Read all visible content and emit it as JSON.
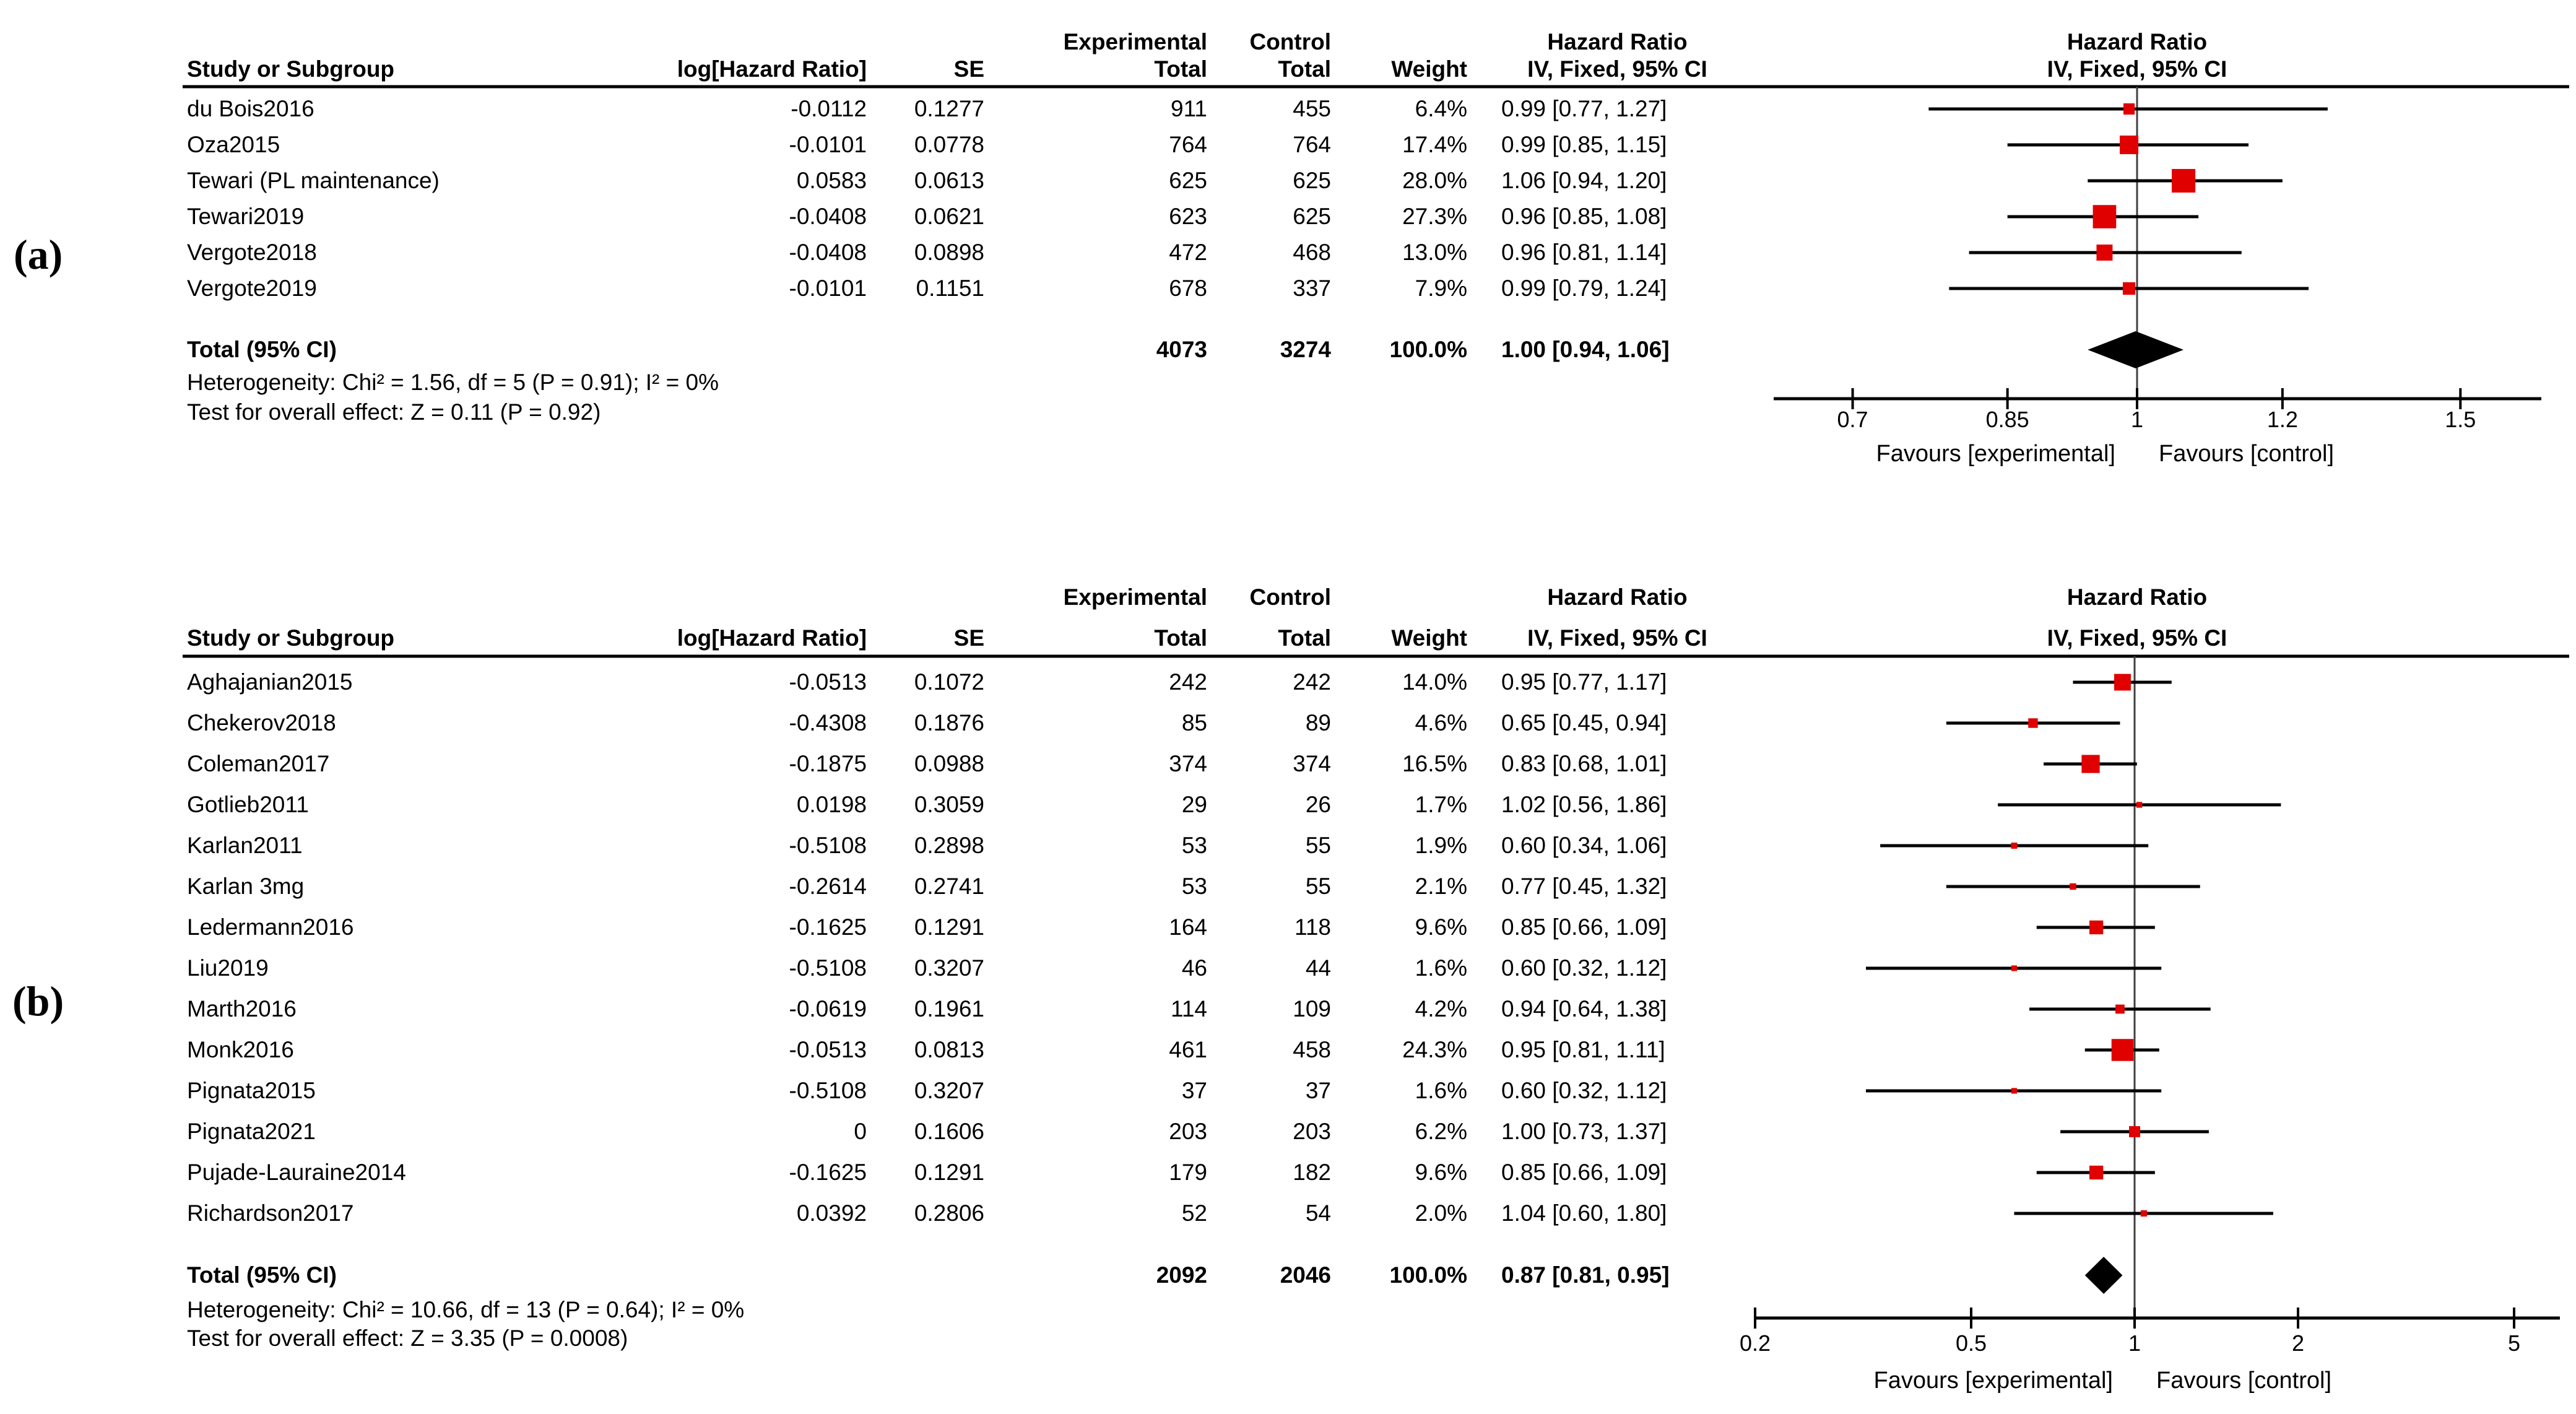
{
  "columns": {
    "experimental": "Experimental",
    "control": "Control",
    "hazard_ratio": "Hazard Ratio",
    "study": "Study or Subgroup",
    "log_hr": "log[Hazard Ratio]",
    "se": "SE",
    "total": "Total",
    "weight": "Weight",
    "iv_fixed": "IV, Fixed, 95% CI"
  },
  "plot_header": {
    "line1": "Hazard Ratio",
    "line2": "IV, Fixed, 95% CI"
  },
  "favours": {
    "left": "Favours [experimental]",
    "right": "Favours [control]"
  },
  "colors": {
    "marker": "#e00000",
    "diamond": "#000000",
    "line": "#000000",
    "null_line": "#404040",
    "text": "#000000"
  },
  "panels": [
    {
      "label": "(a)",
      "studies": [
        {
          "name": "du Bois2016",
          "log_hr": "-0.0112",
          "se": "0.1277",
          "exp_total": "911",
          "ctrl_total": "455",
          "weight": "6.4%",
          "weight_val": 6.4,
          "hr": 0.99,
          "ci_low": 0.77,
          "ci_high": 1.27,
          "hr_text": "0.99 [0.77, 1.27]"
        },
        {
          "name": "Oza2015",
          "log_hr": "-0.0101",
          "se": "0.0778",
          "exp_total": "764",
          "ctrl_total": "764",
          "weight": "17.4%",
          "weight_val": 17.4,
          "hr": 0.99,
          "ci_low": 0.85,
          "ci_high": 1.15,
          "hr_text": "0.99 [0.85, 1.15]"
        },
        {
          "name": "Tewari (PL maintenance)",
          "log_hr": "0.0583",
          "se": "0.0613",
          "exp_total": "625",
          "ctrl_total": "625",
          "weight": "28.0%",
          "weight_val": 28.0,
          "hr": 1.06,
          "ci_low": 0.94,
          "ci_high": 1.2,
          "hr_text": "1.06 [0.94, 1.20]"
        },
        {
          "name": "Tewari2019",
          "log_hr": "-0.0408",
          "se": "0.0621",
          "exp_total": "623",
          "ctrl_total": "625",
          "weight": "27.3%",
          "weight_val": 27.3,
          "hr": 0.96,
          "ci_low": 0.85,
          "ci_high": 1.08,
          "hr_text": "0.96 [0.85, 1.08]"
        },
        {
          "name": "Vergote2018",
          "log_hr": "-0.0408",
          "se": "0.0898",
          "exp_total": "472",
          "ctrl_total": "468",
          "weight": "13.0%",
          "weight_val": 13.0,
          "hr": 0.96,
          "ci_low": 0.81,
          "ci_high": 1.14,
          "hr_text": "0.96 [0.81, 1.14]"
        },
        {
          "name": "Vergote2019",
          "log_hr": "-0.0101",
          "se": "0.1151",
          "exp_total": "678",
          "ctrl_total": "337",
          "weight": "7.9%",
          "weight_val": 7.9,
          "hr": 0.99,
          "ci_low": 0.79,
          "ci_high": 1.24,
          "hr_text": "0.99 [0.79, 1.24]"
        }
      ],
      "total": {
        "label": "Total (95% CI)",
        "exp_total": "4073",
        "ctrl_total": "3274",
        "weight": "100.0%",
        "hr": 1.0,
        "ci_low": 0.94,
        "ci_high": 1.06,
        "hr_text": "1.00 [0.94, 1.06]"
      },
      "heterogeneity": "Heterogeneity: Chi² = 1.56, df = 5 (P = 0.91); I² = 0%",
      "overall": "Test for overall effect: Z = 0.11 (P = 0.92)",
      "axis_ticks": [
        "0.7",
        "0.85",
        "1",
        "1.2",
        "1.5"
      ]
    },
    {
      "label": "(b)",
      "studies": [
        {
          "name": "Aghajanian2015",
          "log_hr": "-0.0513",
          "se": "0.1072",
          "exp_total": "242",
          "ctrl_total": "242",
          "weight": "14.0%",
          "weight_val": 14.0,
          "hr": 0.95,
          "ci_low": 0.77,
          "ci_high": 1.17,
          "hr_text": "0.95 [0.77, 1.17]"
        },
        {
          "name": "Chekerov2018",
          "log_hr": "-0.4308",
          "se": "0.1876",
          "exp_total": "85",
          "ctrl_total": "89",
          "weight": "4.6%",
          "weight_val": 4.6,
          "hr": 0.65,
          "ci_low": 0.45,
          "ci_high": 0.94,
          "hr_text": "0.65 [0.45, 0.94]"
        },
        {
          "name": "Coleman2017",
          "log_hr": "-0.1875",
          "se": "0.0988",
          "exp_total": "374",
          "ctrl_total": "374",
          "weight": "16.5%",
          "weight_val": 16.5,
          "hr": 0.83,
          "ci_low": 0.68,
          "ci_high": 1.01,
          "hr_text": "0.83 [0.68, 1.01]"
        },
        {
          "name": "Gotlieb2011",
          "log_hr": "0.0198",
          "se": "0.3059",
          "exp_total": "29",
          "ctrl_total": "26",
          "weight": "1.7%",
          "weight_val": 1.7,
          "hr": 1.02,
          "ci_low": 0.56,
          "ci_high": 1.86,
          "hr_text": "1.02 [0.56, 1.86]"
        },
        {
          "name": "Karlan2011",
          "log_hr": "-0.5108",
          "se": "0.2898",
          "exp_total": "53",
          "ctrl_total": "55",
          "weight": "1.9%",
          "weight_val": 1.9,
          "hr": 0.6,
          "ci_low": 0.34,
          "ci_high": 1.06,
          "hr_text": "0.60 [0.34, 1.06]"
        },
        {
          "name": "Karlan 3mg",
          "log_hr": "-0.2614",
          "se": "0.2741",
          "exp_total": "53",
          "ctrl_total": "55",
          "weight": "2.1%",
          "weight_val": 2.1,
          "hr": 0.77,
          "ci_low": 0.45,
          "ci_high": 1.32,
          "hr_text": "0.77 [0.45, 1.32]"
        },
        {
          "name": "Ledermann2016",
          "log_hr": "-0.1625",
          "se": "0.1291",
          "exp_total": "164",
          "ctrl_total": "118",
          "weight": "9.6%",
          "weight_val": 9.6,
          "hr": 0.85,
          "ci_low": 0.66,
          "ci_high": 1.09,
          "hr_text": "0.85 [0.66, 1.09]"
        },
        {
          "name": "Liu2019",
          "log_hr": "-0.5108",
          "se": "0.3207",
          "exp_total": "46",
          "ctrl_total": "44",
          "weight": "1.6%",
          "weight_val": 1.6,
          "hr": 0.6,
          "ci_low": 0.32,
          "ci_high": 1.12,
          "hr_text": "0.60 [0.32, 1.12]"
        },
        {
          "name": "Marth2016",
          "log_hr": "-0.0619",
          "se": "0.1961",
          "exp_total": "114",
          "ctrl_total": "109",
          "weight": "4.2%",
          "weight_val": 4.2,
          "hr": 0.94,
          "ci_low": 0.64,
          "ci_high": 1.38,
          "hr_text": "0.94 [0.64, 1.38]"
        },
        {
          "name": "Monk2016",
          "log_hr": "-0.0513",
          "se": "0.0813",
          "exp_total": "461",
          "ctrl_total": "458",
          "weight": "24.3%",
          "weight_val": 24.3,
          "hr": 0.95,
          "ci_low": 0.81,
          "ci_high": 1.11,
          "hr_text": "0.95 [0.81, 1.11]"
        },
        {
          "name": "Pignata2015",
          "log_hr": "-0.5108",
          "se": "0.3207",
          "exp_total": "37",
          "ctrl_total": "37",
          "weight": "1.6%",
          "weight_val": 1.6,
          "hr": 0.6,
          "ci_low": 0.32,
          "ci_high": 1.12,
          "hr_text": "0.60 [0.32, 1.12]"
        },
        {
          "name": "Pignata2021",
          "log_hr": "0",
          "se": "0.1606",
          "exp_total": "203",
          "ctrl_total": "203",
          "weight": "6.2%",
          "weight_val": 6.2,
          "hr": 1.0,
          "ci_low": 0.73,
          "ci_high": 1.37,
          "hr_text": "1.00 [0.73, 1.37]"
        },
        {
          "name": "Pujade-Lauraine2014",
          "log_hr": "-0.1625",
          "se": "0.1291",
          "exp_total": "179",
          "ctrl_total": "182",
          "weight": "9.6%",
          "weight_val": 9.6,
          "hr": 0.85,
          "ci_low": 0.66,
          "ci_high": 1.09,
          "hr_text": "0.85 [0.66, 1.09]"
        },
        {
          "name": "Richardson2017",
          "log_hr": "0.0392",
          "se": "0.2806",
          "exp_total": "52",
          "ctrl_total": "54",
          "weight": "2.0%",
          "weight_val": 2.0,
          "hr": 1.04,
          "ci_low": 0.6,
          "ci_high": 1.8,
          "hr_text": "1.04 [0.60, 1.80]"
        }
      ],
      "total": {
        "label": "Total (95% CI)",
        "exp_total": "2092",
        "ctrl_total": "2046",
        "weight": "100.0%",
        "hr": 0.87,
        "ci_low": 0.81,
        "ci_high": 0.95,
        "hr_text": "0.87 [0.81, 0.95]"
      },
      "heterogeneity": "Heterogeneity: Chi² = 10.66, df = 13 (P = 0.64); I² = 0%",
      "overall": "Test for overall effect: Z = 3.35 (P = 0.0008)",
      "axis_ticks": [
        "0.2",
        "0.5",
        "1",
        "2",
        "5"
      ]
    }
  ],
  "chart_data": [
    {
      "type": "scatter",
      "subtype": "forest_plot",
      "title": "Hazard Ratio IV, Fixed, 95% CI",
      "x_scale": "log",
      "x_ticks": [
        0.7,
        0.85,
        1,
        1.2,
        1.5
      ],
      "xlabel_left": "Favours [experimental]",
      "xlabel_right": "Favours [control]",
      "categories": [
        "du Bois2016",
        "Oza2015",
        "Tewari (PL maintenance)",
        "Tewari2019",
        "Vergote2018",
        "Vergote2019"
      ],
      "series": [
        {
          "name": "hazard_ratio",
          "values": [
            0.99,
            0.99,
            1.06,
            0.96,
            0.96,
            0.99
          ]
        },
        {
          "name": "ci_low",
          "values": [
            0.77,
            0.85,
            0.94,
            0.85,
            0.81,
            0.79
          ]
        },
        {
          "name": "ci_high",
          "values": [
            1.27,
            1.15,
            1.2,
            1.08,
            1.14,
            1.24
          ]
        },
        {
          "name": "weight_pct",
          "values": [
            6.4,
            17.4,
            28.0,
            27.3,
            13.0,
            7.9
          ]
        }
      ],
      "summary": {
        "label": "Total (95% CI)",
        "hazard_ratio": 1.0,
        "ci_low": 0.94,
        "ci_high": 1.06
      },
      "annotations": [
        "Heterogeneity: Chi² = 1.56, df = 5 (P = 0.91); I² = 0%",
        "Test for overall effect: Z = 0.11 (P = 0.92)"
      ]
    },
    {
      "type": "scatter",
      "subtype": "forest_plot",
      "title": "Hazard Ratio IV, Fixed, 95% CI",
      "x_scale": "log",
      "x_ticks": [
        0.2,
        0.5,
        1,
        2,
        5
      ],
      "xlabel_left": "Favours [experimental]",
      "xlabel_right": "Favours [control]",
      "categories": [
        "Aghajanian2015",
        "Chekerov2018",
        "Coleman2017",
        "Gotlieb2011",
        "Karlan2011",
        "Karlan 3mg",
        "Ledermann2016",
        "Liu2019",
        "Marth2016",
        "Monk2016",
        "Pignata2015",
        "Pignata2021",
        "Pujade-Lauraine2014",
        "Richardson2017"
      ],
      "series": [
        {
          "name": "hazard_ratio",
          "values": [
            0.95,
            0.65,
            0.83,
            1.02,
            0.6,
            0.77,
            0.85,
            0.6,
            0.94,
            0.95,
            0.6,
            1.0,
            0.85,
            1.04
          ]
        },
        {
          "name": "ci_low",
          "values": [
            0.77,
            0.45,
            0.68,
            0.56,
            0.34,
            0.45,
            0.66,
            0.32,
            0.64,
            0.81,
            0.32,
            0.73,
            0.66,
            0.6
          ]
        },
        {
          "name": "ci_high",
          "values": [
            1.17,
            0.94,
            1.01,
            1.86,
            1.06,
            1.32,
            1.09,
            1.12,
            1.38,
            1.11,
            1.12,
            1.37,
            1.09,
            1.8
          ]
        },
        {
          "name": "weight_pct",
          "values": [
            14.0,
            4.6,
            16.5,
            1.7,
            1.9,
            2.1,
            9.6,
            1.6,
            4.2,
            24.3,
            1.6,
            6.2,
            9.6,
            2.0
          ]
        }
      ],
      "summary": {
        "label": "Total (95% CI)",
        "hazard_ratio": 0.87,
        "ci_low": 0.81,
        "ci_high": 0.95
      },
      "annotations": [
        "Heterogeneity: Chi² = 10.66, df = 13 (P = 0.64); I² = 0%",
        "Test for overall effect: Z = 3.35 (P = 0.0008)"
      ]
    }
  ]
}
